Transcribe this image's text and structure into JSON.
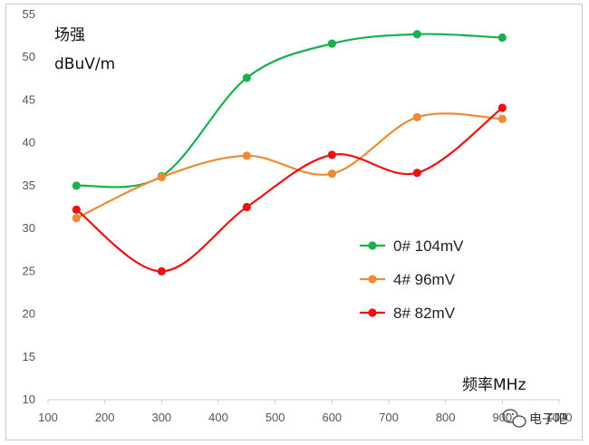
{
  "chart_data": {
    "type": "line",
    "ylabel_line1": "场强",
    "ylabel_line2": "dBuV/m",
    "xlabel": "频率MHz",
    "xlim": [
      100,
      1000
    ],
    "ylim": [
      10,
      55
    ],
    "xticks": [
      100,
      200,
      300,
      400,
      500,
      600,
      700,
      800,
      900,
      1000
    ],
    "yticks": [
      10,
      15,
      20,
      25,
      30,
      35,
      40,
      45,
      50,
      55
    ],
    "x": [
      150,
      300,
      450,
      600,
      750,
      900
    ],
    "smooth": true,
    "grid": false,
    "legend_position": "right-middle",
    "series": [
      {
        "name": "0# 104mV",
        "color": "#1ab04e",
        "values": [
          35.0,
          36.1,
          47.6,
          51.6,
          52.7,
          52.3
        ]
      },
      {
        "name": "4# 96mV",
        "color": "#ee8a33",
        "values": [
          31.2,
          36.0,
          38.5,
          36.4,
          43.0,
          42.8
        ]
      },
      {
        "name": "8# 82mV",
        "color": "#ee1111",
        "values": [
          32.2,
          25.0,
          32.5,
          38.6,
          36.5,
          44.1
        ]
      }
    ]
  },
  "watermark": {
    "text": "电子吧",
    "icon": "wechat-icon"
  }
}
